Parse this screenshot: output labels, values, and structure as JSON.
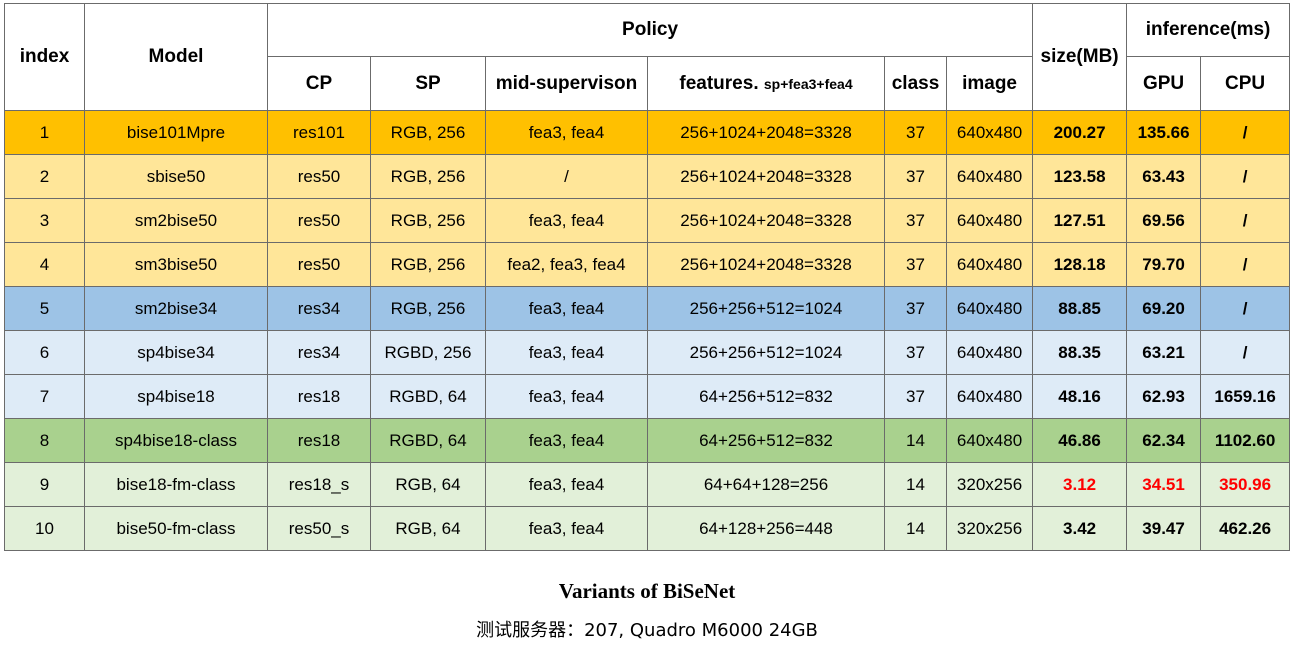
{
  "header": {
    "index": "index",
    "model": "Model",
    "policy": "Policy",
    "size": "size(MB)",
    "inference": "inference(ms)",
    "cp": "CP",
    "sp": "SP",
    "mid_supervision": "mid-supervison",
    "features_main": "features.",
    "features_small": "sp+fea3+fea4",
    "class": "class",
    "image": "image",
    "gpu": "GPU",
    "cpu": "CPU"
  },
  "colors": {
    "orange_strong": "#ffc000",
    "orange_light": "#ffe699",
    "blue_strong": "#9dc3e6",
    "blue_light": "#deebf7",
    "green_strong": "#a9d18e",
    "green_light": "#e2f0d9",
    "highlight_red": "#ff0000"
  },
  "rows": [
    {
      "index": "1",
      "model": "bise101Mpre",
      "cp": "res101",
      "sp": "RGB, 256",
      "mid": "fea3, fea4",
      "features": "256+1024+2048=3328",
      "class": "37",
      "image": "640x480",
      "size": "200.27",
      "gpu": "135.66",
      "cpu": "/",
      "bg": "#ffc000"
    },
    {
      "index": "2",
      "model": "sbise50",
      "cp": "res50",
      "sp": "RGB, 256",
      "mid": "/",
      "features": "256+1024+2048=3328",
      "class": "37",
      "image": "640x480",
      "size": "123.58",
      "gpu": "63.43",
      "cpu": "/",
      "bg": "#ffe699"
    },
    {
      "index": "3",
      "model": "sm2bise50",
      "cp": "res50",
      "sp": "RGB, 256",
      "mid": "fea3, fea4",
      "features": "256+1024+2048=3328",
      "class": "37",
      "image": "640x480",
      "size": "127.51",
      "gpu": "69.56",
      "cpu": "/",
      "bg": "#ffe699"
    },
    {
      "index": "4",
      "model": "sm3bise50",
      "cp": "res50",
      "sp": "RGB, 256",
      "mid": "fea2, fea3, fea4",
      "features": "256+1024+2048=3328",
      "class": "37",
      "image": "640x480",
      "size": "128.18",
      "gpu": "79.70",
      "cpu": "/",
      "bg": "#ffe699"
    },
    {
      "index": "5",
      "model": "sm2bise34",
      "cp": "res34",
      "sp": "RGB, 256",
      "mid": "fea3, fea4",
      "features": "256+256+512=1024",
      "class": "37",
      "image": "640x480",
      "size": "88.85",
      "gpu": "69.20",
      "cpu": "/",
      "bg": "#9dc3e6"
    },
    {
      "index": "6",
      "model": "sp4bise34",
      "cp": "res34",
      "sp": "RGBD, 256",
      "mid": "fea3, fea4",
      "features": "256+256+512=1024",
      "class": "37",
      "image": "640x480",
      "size": "88.35",
      "gpu": "63.21",
      "cpu": "/",
      "bg": "#deebf7"
    },
    {
      "index": "7",
      "model": "sp4bise18",
      "cp": "res18",
      "sp": "RGBD, 64",
      "mid": "fea3, fea4",
      "features": "64+256+512=832",
      "class": "37",
      "image": "640x480",
      "size": "48.16",
      "gpu": "62.93",
      "cpu": "1659.16",
      "bg": "#deebf7"
    },
    {
      "index": "8",
      "model": "sp4bise18-class",
      "cp": "res18",
      "sp": "RGBD, 64",
      "mid": "fea3, fea4",
      "features": "64+256+512=832",
      "class": "14",
      "image": "640x480",
      "size": "46.86",
      "gpu": "62.34",
      "cpu": "1102.60",
      "bg": "#a9d18e"
    },
    {
      "index": "9",
      "model": "bise18-fm-class",
      "cp": "res18_s",
      "sp": "RGB, 64",
      "mid": "fea3, fea4",
      "features": "64+64+128=256",
      "class": "14",
      "image": "320x256",
      "size": "3.12",
      "gpu": "34.51",
      "cpu": "350.96",
      "bg": "#e2f0d9",
      "red": true
    },
    {
      "index": "10",
      "model": "bise50-fm-class",
      "cp": "res50_s",
      "sp": "RGB, 64",
      "mid": "fea3, fea4",
      "features": "64+128+256=448",
      "class": "14",
      "image": "320x256",
      "size": "3.42",
      "gpu": "39.47",
      "cpu": "462.26",
      "bg": "#e2f0d9"
    }
  ],
  "caption": "Variants of BiSeNet",
  "subcaption": "测试服务器：207, Quadro M6000 24GB"
}
